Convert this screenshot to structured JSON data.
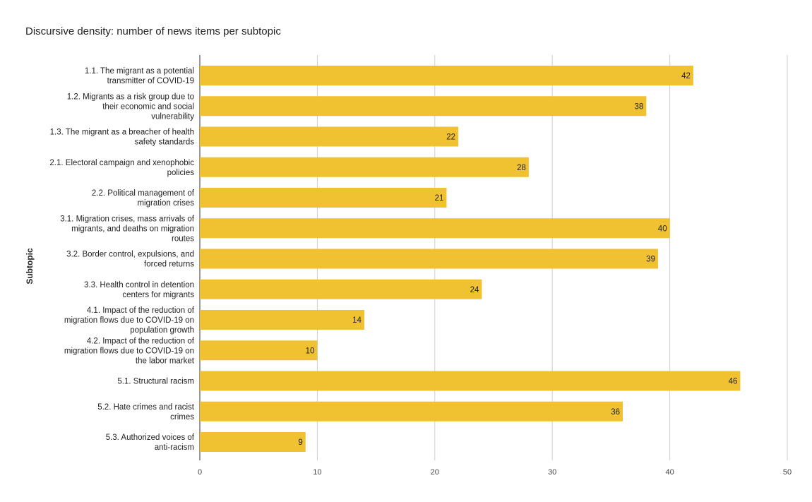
{
  "chart_data": {
    "type": "bar",
    "orientation": "horizontal",
    "title": "Discursive density: number of news items per subtopic",
    "ylabel": "Subtopic",
    "xlabel": "",
    "xlim": [
      0,
      50
    ],
    "xticks": [
      "0",
      "10",
      "20",
      "30",
      "40",
      "50"
    ],
    "grid": true,
    "bar_color": "#f0c232",
    "categories": [
      [
        "1.1. The migrant as a potential",
        "transmitter of COVID-19"
      ],
      [
        "1.2. Migrants as a risk group due to",
        "their economic and social",
        "vulnerability"
      ],
      [
        "1.3. The migrant as a breacher of health",
        "safety standards"
      ],
      [
        "2.1. Electoral campaign and xenophobic",
        "policies"
      ],
      [
        "2.2. Political management of",
        "migration crises"
      ],
      [
        "3.1. Migration crises, mass arrivals of",
        "migrants, and deaths on migration",
        "routes"
      ],
      [
        "3.2. Border control, expulsions, and",
        "forced returns"
      ],
      [
        "3.3. Health control in detention",
        "centers for migrants"
      ],
      [
        "4.1. Impact of the reduction of",
        "migration flows due to COVID-19 on",
        "population growth"
      ],
      [
        "4.2. Impact of the reduction of",
        "migration flows due to COVID-19 on",
        "the labor market"
      ],
      [
        "5.1. Structural racism"
      ],
      [
        "5.2. Hate crimes and racist",
        "crimes"
      ],
      [
        "5.3. Authorized voices of",
        "anti-racism"
      ]
    ],
    "values": [
      42,
      38,
      22,
      28,
      21,
      40,
      39,
      24,
      14,
      10,
      46,
      36,
      9
    ]
  }
}
